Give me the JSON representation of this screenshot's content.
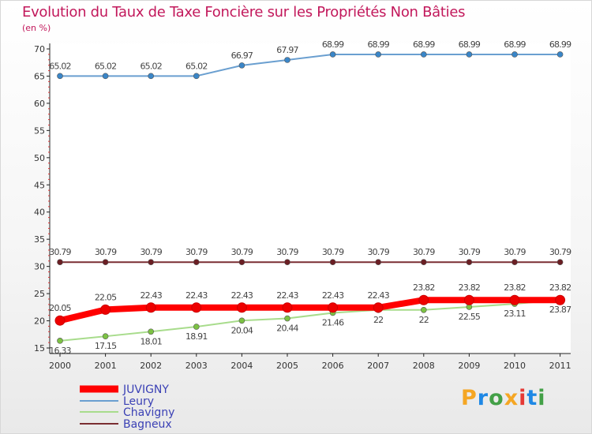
{
  "title": "Evolution du Taux de Taxe Foncière sur les Propriétés Non Bâties",
  "unit_label": "(en %)",
  "logo": {
    "text": "Proxiti",
    "colors": [
      "#f5a623",
      "#1e88e5",
      "#43a047",
      "#f5a623",
      "#e53935",
      "#1e88e5",
      "#43a047"
    ]
  },
  "chart_data": {
    "type": "line",
    "title": "Evolution du Taux de Taxe Foncière sur les Propriétés Non Bâties",
    "ylabel": "(en %)",
    "xlabel": "",
    "ylim": [
      15,
      70
    ],
    "yticks": [
      15,
      20,
      25,
      30,
      35,
      40,
      45,
      50,
      55,
      60,
      65,
      70
    ],
    "categories": [
      "2000",
      "2001",
      "2002",
      "2003",
      "2004",
      "2005",
      "2006",
      "2007",
      "2008",
      "2009",
      "2010",
      "2011"
    ],
    "series": [
      {
        "name": "Leury",
        "color": "#6a9fd0",
        "marker": "#3a86c8",
        "values": [
          65.02,
          65.02,
          65.02,
          65.02,
          66.97,
          67.97,
          68.99,
          68.99,
          68.99,
          68.99,
          68.99,
          68.99
        ],
        "labels": [
          "65.02",
          "65.02",
          "65.02",
          "65.02",
          "66.97",
          "67.97",
          "68.99",
          "68.99",
          "68.99",
          "68.99",
          "68.99",
          "68.99"
        ]
      },
      {
        "name": "Bagneux",
        "color": "#7a2e32",
        "marker": "#6b1f24",
        "values": [
          30.79,
          30.79,
          30.79,
          30.79,
          30.79,
          30.79,
          30.79,
          30.79,
          30.79,
          30.79,
          30.79,
          30.79
        ],
        "labels": [
          "30.79",
          "30.79",
          "30.79",
          "30.79",
          "30.79",
          "30.79",
          "30.79",
          "30.79",
          "30.79",
          "30.79",
          "30.79",
          "30.79"
        ]
      },
      {
        "name": "Chavigny",
        "color": "#a8dc8c",
        "marker": "#7cc243",
        "values": [
          16.33,
          17.15,
          18.01,
          18.91,
          20.04,
          20.44,
          21.46,
          22.0,
          22.0,
          22.55,
          23.11,
          23.87
        ],
        "labels": [
          "16.33",
          "17.15",
          "18.01",
          "18.91",
          "20.04",
          "20.44",
          "21.46",
          "22",
          "22",
          "22.55",
          "23.11",
          "23.87"
        ]
      },
      {
        "name": "JUVIGNY",
        "color": "#ff0000",
        "marker": "#ee0000",
        "values": [
          20.05,
          22.05,
          22.43,
          22.43,
          22.43,
          22.43,
          22.43,
          22.43,
          23.82,
          23.82,
          23.82,
          23.82
        ],
        "labels": [
          "20.05",
          "22.05",
          "22.43",
          "22.43",
          "22.43",
          "22.43",
          "22.43",
          "22.43",
          "23.82",
          "23.82",
          "23.82",
          "23.82"
        ]
      }
    ],
    "legend": [
      "JUVIGNY",
      "Leury",
      "Chavigny",
      "Bagneux"
    ]
  }
}
